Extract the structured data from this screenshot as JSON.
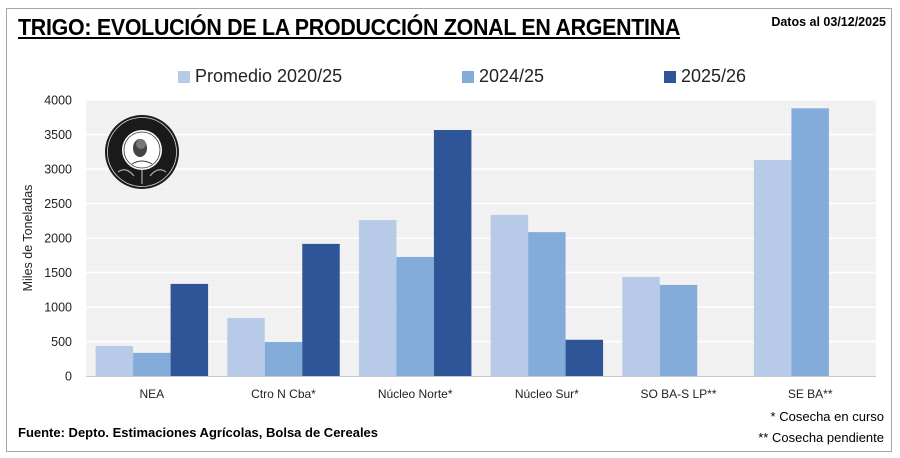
{
  "header": {
    "title": "TRIGO: EVOLUCIÓN DE LA PRODUCCIÓN ZONAL EN ARGENTINA",
    "date": "Datos al 03/12/2025"
  },
  "logo": {
    "icon": "bolsa-de-cereales-seal-icon",
    "text": "Bolsa de Cereales"
  },
  "footer": {
    "source": "Fuente: Depto. Estimaciones Agrícolas, Bolsa de Cereales",
    "note1": "* Cosecha en curso",
    "note2": "** Cosecha pendiente"
  },
  "colors": {
    "promedio": "#b7cbe8",
    "c2024": "#83acdb",
    "c2025": "#2e5597",
    "plot_bg": "#f2f2f2",
    "grid": "#ffffff"
  },
  "chart_data": {
    "type": "bar",
    "title": "TRIGO: EVOLUCIÓN DE LA PRODUCCIÓN ZONAL EN ARGENTINA",
    "xlabel": "",
    "ylabel": "Miles de Toneladas",
    "ylim": [
      0,
      4000
    ],
    "yticks": [
      0,
      500,
      1000,
      1500,
      2000,
      2500,
      3000,
      3500,
      4000
    ],
    "grid": true,
    "legend_position": "top",
    "categories": [
      "NEA",
      "Ctro N Cba*",
      "Núcleo Norte*",
      "Núcleo Sur*",
      "SO BA-S LP**",
      "SE BA**"
    ],
    "series": [
      {
        "name": "Promedio 2020/25",
        "color": "#b7cbe8",
        "values": [
          435,
          840,
          2260,
          2335,
          1435,
          3130
        ]
      },
      {
        "name": "2024/25",
        "color": "#83acdb",
        "values": [
          335,
          495,
          1725,
          2085,
          1320,
          3880
        ]
      },
      {
        "name": "2025/26",
        "color": "#2e5597",
        "values": [
          1335,
          1915,
          3565,
          525,
          null,
          null
        ]
      }
    ]
  }
}
